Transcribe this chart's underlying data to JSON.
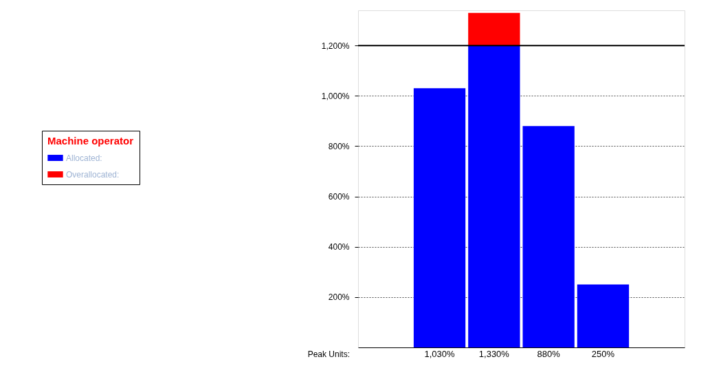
{
  "chart_data": {
    "type": "bar",
    "stacked": true,
    "legend_title": "Machine operator",
    "legend": "left",
    "categories": [
      null,
      null,
      null,
      null,
      null,
      null
    ],
    "series": [
      {
        "name": "Allocated:",
        "color": "#0000ff",
        "values": [
          null,
          1030,
          1200,
          880,
          250,
          null
        ]
      },
      {
        "name": "Overallocated:",
        "color": "#ff0000",
        "values": [
          null,
          null,
          130,
          null,
          null,
          null
        ]
      }
    ],
    "totals": [
      null,
      "1,030%",
      "1,330%",
      "880%",
      "250%",
      null
    ],
    "annotations": [
      "Peak Units:"
    ],
    "ylim": [
      0,
      1340
    ],
    "yticks": [
      {
        "value": 200,
        "label": "200%"
      },
      {
        "value": 400,
        "label": "400%"
      },
      {
        "value": 600,
        "label": "600%"
      },
      {
        "value": 800,
        "label": "800%"
      },
      {
        "value": 1000,
        "label": "1,000%"
      },
      {
        "value": 1200,
        "label": "1,200%"
      }
    ],
    "ref_lines": [
      {
        "axis": "y",
        "value": 1200,
        "color": "#000000",
        "line_style": "solid"
      }
    ],
    "grid": "y",
    "tick_labels": "y"
  }
}
